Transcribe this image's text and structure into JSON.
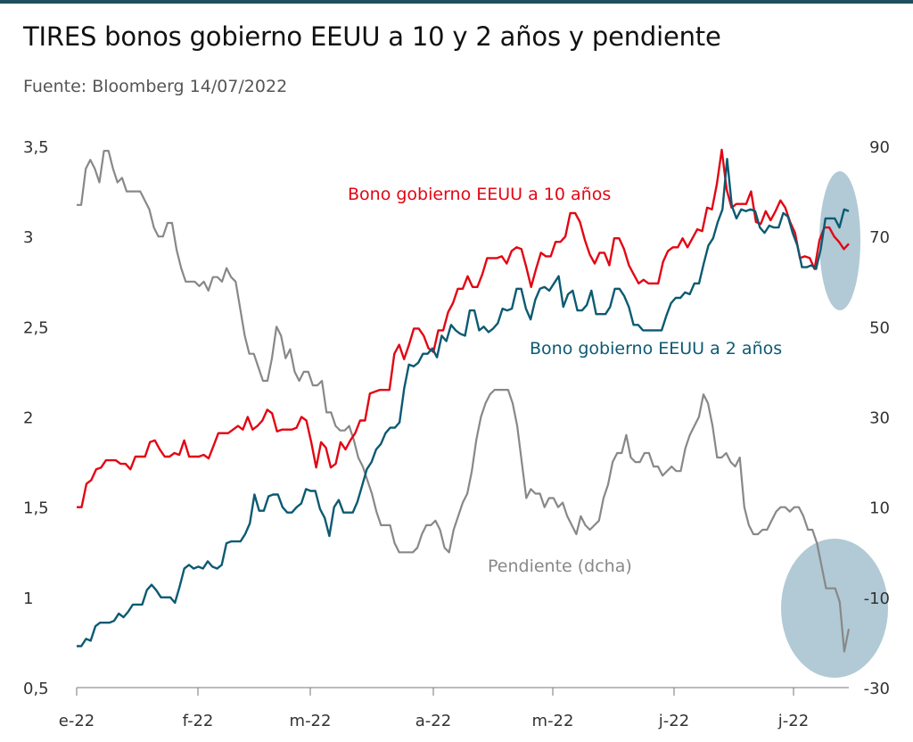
{
  "title": "TIRES bonos gobierno EEUU a 10 y 2 años y pendiente",
  "subtitle": "Fuente: Bloomberg 14/07/2022",
  "colors": {
    "us10y": "#e30613",
    "us2y": "#0c5a72",
    "slope": "#888888",
    "highlight": "#a9c4d0",
    "topbar": "#1f4e5f"
  },
  "chart_data": {
    "type": "line",
    "title": "TIRES bonos gobierno EEUU a 10 y 2 años y pendiente",
    "subtitle": "Fuente: Bloomberg 14/07/2022",
    "x_ticks": [
      "e-22",
      "f-22",
      "m-22",
      "a-22",
      "m-22",
      "j-22",
      "j-22"
    ],
    "y_left": {
      "range": [
        0.5,
        3.5
      ],
      "ticks": [
        "0,5",
        "1",
        "1,5",
        "2",
        "2,5",
        "3",
        "3,5"
      ]
    },
    "y_right": {
      "range": [
        -30,
        90
      ],
      "ticks": [
        "-30",
        "-10",
        "10",
        "30",
        "50",
        "70",
        "90"
      ]
    },
    "grid": false,
    "series": [
      {
        "name": "Bono gobierno EEUU a 10 años",
        "axis": "left",
        "values": [
          1.5,
          1.5,
          1.63,
          1.65,
          1.71,
          1.72,
          1.76,
          1.76,
          1.76,
          1.74,
          1.74,
          1.71,
          1.78,
          1.78,
          1.78,
          1.86,
          1.87,
          1.82,
          1.78,
          1.78,
          1.8,
          1.79,
          1.87,
          1.78,
          1.78,
          1.78,
          1.79,
          1.77,
          1.84,
          1.91,
          1.91,
          1.91,
          1.93,
          1.95,
          1.93,
          2.0,
          1.93,
          1.95,
          1.98,
          2.04,
          2.02,
          1.92,
          1.93,
          1.93,
          1.93,
          1.94,
          2.0,
          1.98,
          1.86,
          1.72,
          1.86,
          1.83,
          1.72,
          1.74,
          1.86,
          1.82,
          1.87,
          1.91,
          1.98,
          1.98,
          2.13,
          2.14,
          2.15,
          2.15,
          2.15,
          2.35,
          2.4,
          2.32,
          2.4,
          2.49,
          2.49,
          2.45,
          2.38,
          2.36,
          2.48,
          2.48,
          2.58,
          2.63,
          2.71,
          2.71,
          2.78,
          2.72,
          2.72,
          2.79,
          2.88,
          2.88,
          2.88,
          2.89,
          2.85,
          2.92,
          2.94,
          2.93,
          2.83,
          2.72,
          2.82,
          2.91,
          2.89,
          2.89,
          2.97,
          2.97,
          3.0,
          3.13,
          3.13,
          3.08,
          2.98,
          2.9,
          2.85,
          2.91,
          2.91,
          2.84,
          2.99,
          2.99,
          2.93,
          2.84,
          2.79,
          2.74,
          2.76,
          2.74,
          2.74,
          2.74,
          2.86,
          2.92,
          2.94,
          2.94,
          2.99,
          2.94,
          2.99,
          3.04,
          3.03,
          3.16,
          3.15,
          3.29,
          3.48,
          3.26,
          3.16,
          3.18,
          3.18,
          3.18,
          3.25,
          3.08,
          3.07,
          3.14,
          3.09,
          3.14,
          3.2,
          3.16,
          3.08,
          3.02,
          2.88,
          2.89,
          2.88,
          2.82,
          2.98,
          3.05,
          3.05,
          3.0,
          2.97,
          2.93,
          2.96
        ]
      },
      {
        "name": "Bono gobierno EEUU a 2 años",
        "axis": "left",
        "values": [
          0.73,
          0.73,
          0.77,
          0.76,
          0.84,
          0.86,
          0.86,
          0.86,
          0.87,
          0.91,
          0.89,
          0.92,
          0.96,
          0.96,
          0.96,
          1.04,
          1.07,
          1.04,
          1.0,
          1.0,
          1.0,
          0.97,
          1.06,
          1.16,
          1.18,
          1.16,
          1.17,
          1.16,
          1.2,
          1.17,
          1.16,
          1.18,
          1.3,
          1.31,
          1.31,
          1.31,
          1.35,
          1.41,
          1.57,
          1.48,
          1.48,
          1.56,
          1.57,
          1.57,
          1.5,
          1.47,
          1.47,
          1.5,
          1.52,
          1.6,
          1.59,
          1.59,
          1.49,
          1.44,
          1.34,
          1.5,
          1.54,
          1.47,
          1.47,
          1.47,
          1.53,
          1.62,
          1.71,
          1.75,
          1.82,
          1.85,
          1.91,
          1.94,
          1.94,
          1.97,
          2.16,
          2.29,
          2.28,
          2.3,
          2.35,
          2.35,
          2.38,
          2.33,
          2.45,
          2.42,
          2.51,
          2.48,
          2.46,
          2.45,
          2.59,
          2.59,
          2.48,
          2.5,
          2.47,
          2.49,
          2.52,
          2.6,
          2.59,
          2.6,
          2.71,
          2.71,
          2.6,
          2.54,
          2.65,
          2.71,
          2.72,
          2.7,
          2.74,
          2.78,
          2.61,
          2.68,
          2.7,
          2.59,
          2.59,
          2.62,
          2.7,
          2.57,
          2.57,
          2.57,
          2.61,
          2.71,
          2.71,
          2.67,
          2.61,
          2.51,
          2.51,
          2.48,
          2.48,
          2.48,
          2.48,
          2.48,
          2.56,
          2.63,
          2.66,
          2.66,
          2.69,
          2.68,
          2.74,
          2.74,
          2.85,
          2.95,
          2.99,
          3.08,
          3.15,
          3.43,
          3.17,
          3.1,
          3.15,
          3.14,
          3.15,
          3.14,
          3.05,
          3.02,
          3.06,
          3.05,
          3.05,
          3.13,
          3.11,
          3.02,
          2.95,
          2.83,
          2.83,
          2.84,
          2.82,
          2.93,
          3.1,
          3.1,
          3.1,
          3.05,
          3.15,
          3.14
        ]
      },
      {
        "name": "Pendiente (dcha)",
        "axis": "right",
        "values": [
          77,
          77,
          85,
          87,
          85,
          82,
          89,
          89,
          85,
          82,
          83,
          80,
          80,
          80,
          80,
          78,
          76,
          72,
          70,
          70,
          73,
          73,
          67,
          63,
          60,
          60,
          60,
          59,
          60,
          58,
          61,
          61,
          60,
          63,
          61,
          60,
          54,
          48,
          44,
          44,
          41,
          38,
          38,
          43,
          50,
          48,
          43,
          45,
          40,
          38,
          40,
          40,
          37,
          37,
          38,
          31,
          31,
          28,
          27,
          27,
          28,
          25,
          21,
          19,
          16,
          13,
          9,
          6,
          6,
          6,
          2,
          0,
          0,
          0,
          0,
          1,
          4,
          6,
          6,
          7,
          5,
          1,
          0,
          5,
          8,
          11,
          13,
          18,
          25,
          30,
          33,
          35,
          36,
          36,
          36,
          36,
          33,
          28,
          20,
          12,
          14,
          13,
          13,
          10,
          12,
          12,
          10,
          11,
          8,
          6,
          4,
          8,
          6,
          5,
          6,
          7,
          12,
          15,
          20,
          22,
          22,
          26,
          21,
          20,
          20,
          22,
          22,
          19,
          19,
          17,
          18,
          19,
          18,
          18,
          23,
          26,
          28,
          30,
          35,
          33,
          28,
          21,
          21,
          22,
          20,
          19,
          21,
          10,
          6,
          4,
          4,
          5,
          5,
          7,
          9,
          10,
          10,
          9,
          10,
          10,
          8,
          5,
          5,
          2,
          -3,
          -8,
          -8,
          -8,
          -11,
          -22,
          -17
        ]
      }
    ],
    "annotations": [
      {
        "text": "Bono gobierno EEUU a 10 años",
        "series": "Bono gobierno EEUU a 10 años"
      },
      {
        "text": "Bono gobierno EEUU a 2 años",
        "series": "Bono gobierno EEUU a 2 años"
      },
      {
        "text": "Pendiente (dcha)",
        "series": "Pendiente (dcha)"
      }
    ]
  }
}
